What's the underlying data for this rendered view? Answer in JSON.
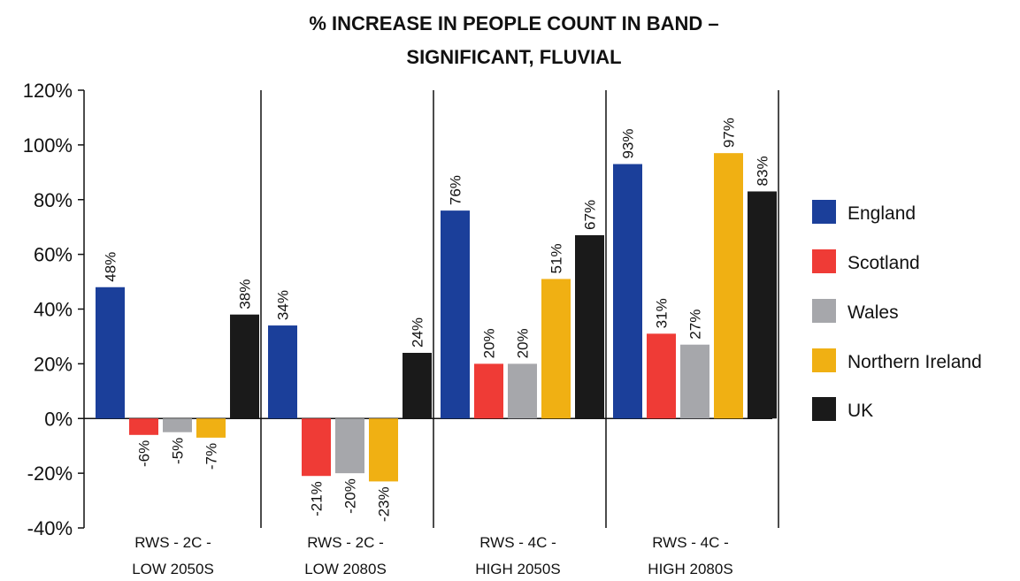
{
  "chart_data": {
    "type": "bar",
    "title": [
      "% INCREASE IN PEOPLE COUNT IN BAND –",
      "SIGNIFICANT, FLUVIAL"
    ],
    "categories": [
      [
        "RWS - 2C -",
        "LOW 2050S"
      ],
      [
        "RWS - 2C -",
        "LOW 2080S"
      ],
      [
        "RWS - 4C -",
        "HIGH 2050S"
      ],
      [
        "RWS - 4C -",
        "HIGH 2080S"
      ]
    ],
    "y_ticks": [
      -40,
      -20,
      0,
      20,
      40,
      60,
      80,
      100,
      120
    ],
    "y_tick_labels": [
      "-40%",
      "-20%",
      "0%",
      "20%",
      "40%",
      "60%",
      "80%",
      "100%",
      "120%"
    ],
    "ylim": [
      -40,
      120
    ],
    "grid": false,
    "legend_position": "right",
    "series": [
      {
        "name": "England",
        "color": "#1b3f9a",
        "values": [
          48,
          34,
          76,
          93
        ],
        "labels": [
          "48%",
          "34%",
          "76%",
          "93%"
        ]
      },
      {
        "name": "Scotland",
        "color": "#ef3b36",
        "values": [
          -6,
          -21,
          20,
          31
        ],
        "labels": [
          "-6%",
          "-21%",
          "20%",
          "31%"
        ]
      },
      {
        "name": "Wales",
        "color": "#a6a7ab",
        "values": [
          -5,
          -20,
          20,
          27
        ],
        "labels": [
          "-5%",
          "-20%",
          "20%",
          "27%"
        ]
      },
      {
        "name": "Northern Ireland",
        "color": "#f0b013",
        "values": [
          -7,
          -23,
          51,
          97
        ],
        "labels": [
          "-7%",
          "-23%",
          "51%",
          "97%"
        ]
      },
      {
        "name": "UK",
        "color": "#1a1a1a",
        "values": [
          38,
          24,
          67,
          83
        ],
        "labels": [
          "38%",
          "24%",
          "67%",
          "83%"
        ]
      }
    ]
  }
}
